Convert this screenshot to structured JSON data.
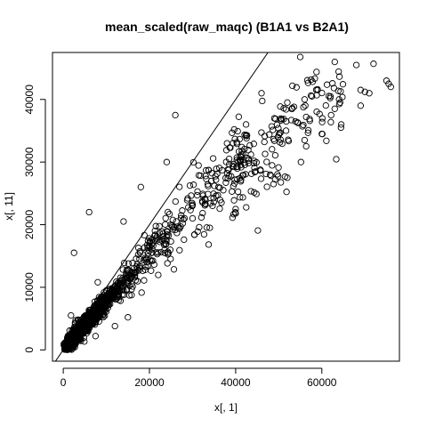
{
  "chart_data": {
    "type": "scatter",
    "title": "mean_scaled(raw_maqc) (B1A1 vs B2A1)",
    "xlabel": "x[, 1]",
    "ylabel": "x[, 11]",
    "xlim": [
      -2500,
      78000
    ],
    "ylim": [
      -1800,
      47500
    ],
    "x_ticks": [
      0,
      20000,
      40000,
      60000
    ],
    "y_ticks": [
      0,
      10000,
      20000,
      30000,
      40000
    ],
    "x_tick_labels": [
      "0",
      "20000",
      "40000",
      "60000"
    ],
    "y_tick_labels": [
      "0",
      "10000",
      "20000",
      "30000",
      "40000"
    ],
    "reference_line": {
      "type": "identity",
      "slope": 1,
      "intercept": 0
    },
    "grid": false,
    "legend": "none",
    "marker": "open-circle",
    "point_color": "#000000",
    "outliers": [
      {
        "x": 63000,
        "y": 46000
      },
      {
        "x": 68000,
        "y": 45500
      },
      {
        "x": 72000,
        "y": 45700
      },
      {
        "x": 75000,
        "y": 43000
      },
      {
        "x": 75500,
        "y": 42500
      },
      {
        "x": 76000,
        "y": 42000
      },
      {
        "x": 69000,
        "y": 41500
      },
      {
        "x": 70000,
        "y": 41200
      },
      {
        "x": 71000,
        "y": 41000
      },
      {
        "x": 59000,
        "y": 41500
      },
      {
        "x": 62000,
        "y": 40500
      },
      {
        "x": 64000,
        "y": 40000
      },
      {
        "x": 69000,
        "y": 39000
      },
      {
        "x": 63000,
        "y": 38500
      },
      {
        "x": 64500,
        "y": 36000
      },
      {
        "x": 46000,
        "y": 41000
      },
      {
        "x": 26000,
        "y": 37500
      },
      {
        "x": 18000,
        "y": 26000
      },
      {
        "x": 14000,
        "y": 20500
      },
      {
        "x": 6000,
        "y": 22000
      },
      {
        "x": 2500,
        "y": 15500
      },
      {
        "x": 1800,
        "y": 5500
      },
      {
        "x": 7500,
        "y": 2200
      },
      {
        "x": 12000,
        "y": 3800
      },
      {
        "x": 15000,
        "y": 5200
      },
      {
        "x": 8000,
        "y": 10800
      },
      {
        "x": 60000,
        "y": 34500
      },
      {
        "x": 56000,
        "y": 33500
      },
      {
        "x": 52000,
        "y": 27500
      },
      {
        "x": 48000,
        "y": 28000
      },
      {
        "x": 36000,
        "y": 26000
      },
      {
        "x": 33000,
        "y": 24000
      },
      {
        "x": 40000,
        "y": 22500
      },
      {
        "x": 30000,
        "y": 21000
      },
      {
        "x": 34000,
        "y": 19500
      },
      {
        "x": 24000,
        "y": 30000
      },
      {
        "x": 38000,
        "y": 33000
      },
      {
        "x": 52000,
        "y": 39500
      },
      {
        "x": 56000,
        "y": 40000
      }
    ],
    "clusters": [
      {
        "name": "",
        "center_x": 9000,
        "center_y": 7000,
        "n": 1200,
        "spread_x": 6500,
        "slope": 0.76,
        "noise": 1400
      },
      {
        "name": "",
        "center_x": 28000,
        "center_y": 21000,
        "n": 260,
        "spread_x": 15000,
        "slope": 0.72,
        "noise": 2600
      },
      {
        "name": "",
        "center_x": 52000,
        "center_y": 35000,
        "n": 150,
        "spread_x": 13000,
        "slope": 0.62,
        "noise": 3000
      }
    ]
  }
}
